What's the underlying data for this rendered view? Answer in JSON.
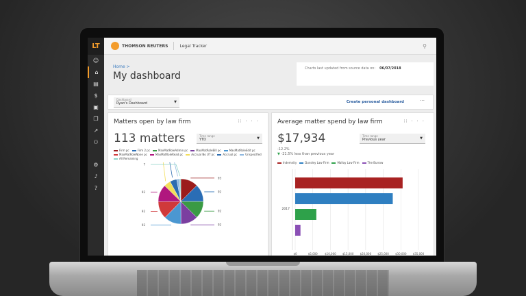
{
  "sidebar": {
    "logo": "LT",
    "items": [
      {
        "icon": "user-icon",
        "glyph": "☺"
      },
      {
        "icon": "home-icon",
        "glyph": "⌂",
        "active": true
      },
      {
        "icon": "document-icon",
        "glyph": "▤"
      },
      {
        "icon": "dollar-icon",
        "glyph": "$"
      },
      {
        "icon": "briefcase-icon",
        "glyph": "▣"
      },
      {
        "icon": "copy-icon",
        "glyph": "❐"
      },
      {
        "icon": "chart-icon",
        "glyph": "↗"
      },
      {
        "icon": "people-icon",
        "glyph": "⚇"
      },
      {
        "icon": "gear-icon",
        "glyph": "⚙"
      },
      {
        "icon": "bell-icon",
        "glyph": "♪"
      },
      {
        "icon": "help-icon",
        "glyph": "?"
      }
    ]
  },
  "header": {
    "brand": "THOMSON REUTERS",
    "app": "Legal Tracker"
  },
  "page": {
    "breadcrumb": "Home  >",
    "title": "My dashboard",
    "updated_label": "Charts last updated from source data on:",
    "updated_date": "06/07/2018"
  },
  "toolbar": {
    "dashboard_label": "Dashboard",
    "dashboard_value": "Ryan's Dashboard",
    "create": "Create personal dashboard",
    "more": "···"
  },
  "card1": {
    "title": "Matters open by law firm",
    "big": "113 matters",
    "range_label": "Time range",
    "range_value": "YTD"
  },
  "card2": {
    "title": "Average matter spend by law firm",
    "big": "$17,934",
    "change": "-12.2%",
    "comparison": "-21.5% less than previous year",
    "range_label": "Time range",
    "range_value": "Previous year"
  },
  "chart_data": [
    {
      "type": "pie",
      "series": [
        {
          "name": "Firm pc",
          "value": 93,
          "color": "#9b1c1c"
        },
        {
          "name": "Firm 2 pc",
          "value": 92,
          "color": "#2a6db5"
        },
        {
          "name": "MaxMatRoleAdmin pc",
          "value": 92,
          "color": "#3a9a44"
        },
        {
          "name": "MaxMatRoleBill pc",
          "value": 92,
          "color": "#7b3fa0"
        },
        {
          "name": "MaxMatRoleEdit pc",
          "value": 92,
          "color": "#4b97d1"
        },
        {
          "name": "MaxMatRoleNone pc",
          "value": 92,
          "color": "#d0393a"
        },
        {
          "name": "MaxMatRoleRead pc",
          "value": 92,
          "color": "#b0177e"
        },
        {
          "name": "Accrual No UT pc",
          "value": 36,
          "color": "#f3de5a"
        },
        {
          "name": "Accrual pc",
          "value": 36,
          "color": "#2d6cb0"
        },
        {
          "name": "Unspecified",
          "value": 15,
          "color": "#8fb8e0"
        },
        {
          "name": "All Remaining",
          "value": 7,
          "color": "#8fd4c8"
        }
      ]
    },
    {
      "type": "bar",
      "orientation": "horizontal",
      "categories": [
        "2017"
      ],
      "series": [
        {
          "name": "Indemnity",
          "value": 30500,
          "color": "#a82222"
        },
        {
          "name": "Dunsley Law Firm",
          "value": 27700,
          "color": "#2f7fc1"
        },
        {
          "name": "Malloy Law Firm",
          "value": 6000,
          "color": "#2ea14a"
        },
        {
          "name": "The Burrow",
          "value": 1500,
          "color": "#8a4fb5"
        }
      ],
      "xlim": [
        0,
        35000
      ],
      "xticks": [
        "$0",
        "$5,000",
        "$10,000",
        "$15,000",
        "$20,000",
        "$25,000",
        "$30,000",
        "$35,000"
      ],
      "grid": true
    }
  ]
}
